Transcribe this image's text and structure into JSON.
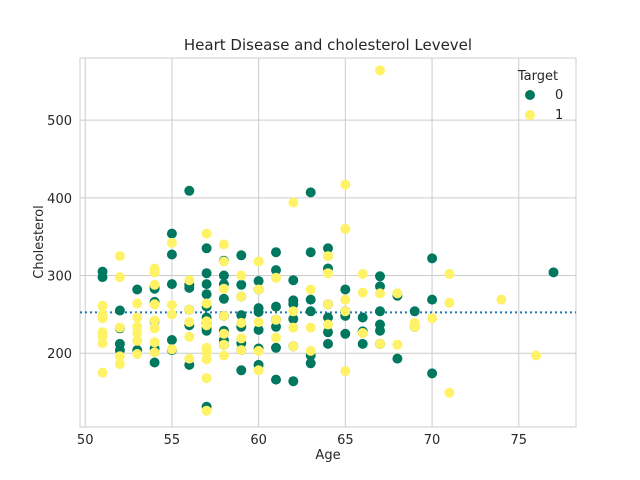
{
  "chart_data": {
    "type": "scatter",
    "title": "Heart Disease and cholesterol Levevel",
    "xlabel": "Age",
    "ylabel": "Cholesterol",
    "xlim": [
      49.7,
      78.3
    ],
    "ylim": [
      105,
      580
    ],
    "xticks": [
      50,
      55,
      60,
      65,
      70,
      75
    ],
    "yticks": [
      200,
      300,
      400,
      500
    ],
    "grid": true,
    "legend": {
      "title": "Target",
      "placement": "top-right"
    },
    "reference_line": {
      "y": 252.5,
      "style": "dotted",
      "color": "#1f77b4"
    },
    "series": [
      {
        "name": "0",
        "color": "#00785f",
        "points": [
          [
            51,
            305
          ],
          [
            51,
            298
          ],
          [
            52,
            255
          ],
          [
            52,
            232
          ],
          [
            52,
            212
          ],
          [
            52,
            204
          ],
          [
            53,
            282
          ],
          [
            53,
            204
          ],
          [
            54,
            286
          ],
          [
            54,
            283
          ],
          [
            54,
            266
          ],
          [
            54,
            241
          ],
          [
            54,
            206
          ],
          [
            54,
            188
          ],
          [
            55,
            354
          ],
          [
            55,
            327
          ],
          [
            55,
            289
          ],
          [
            55,
            217
          ],
          [
            55,
            204
          ],
          [
            56,
            409
          ],
          [
            56,
            288
          ],
          [
            56,
            284
          ],
          [
            56,
            256
          ],
          [
            56,
            236
          ],
          [
            56,
            185
          ],
          [
            57,
            335
          ],
          [
            57,
            303
          ],
          [
            57,
            289
          ],
          [
            57,
            276
          ],
          [
            57,
            260
          ],
          [
            57,
            246
          ],
          [
            57,
            239
          ],
          [
            57,
            232
          ],
          [
            57,
            229
          ],
          [
            57,
            131
          ],
          [
            58,
            319
          ],
          [
            58,
            300
          ],
          [
            58,
            289
          ],
          [
            58,
            270
          ],
          [
            58,
            248
          ],
          [
            58,
            229
          ],
          [
            58,
            217
          ],
          [
            58,
            211
          ],
          [
            59,
            326
          ],
          [
            59,
            288
          ],
          [
            59,
            273
          ],
          [
            59,
            249
          ],
          [
            59,
            234
          ],
          [
            59,
            213
          ],
          [
            59,
            204
          ],
          [
            59,
            178
          ],
          [
            60,
            293
          ],
          [
            60,
            282
          ],
          [
            60,
            258
          ],
          [
            60,
            253
          ],
          [
            60,
            230
          ],
          [
            60,
            206
          ],
          [
            60,
            185
          ],
          [
            61,
            330
          ],
          [
            61,
            307
          ],
          [
            61,
            260
          ],
          [
            61,
            243
          ],
          [
            61,
            234
          ],
          [
            61,
            207
          ],
          [
            61,
            166
          ],
          [
            62,
            294
          ],
          [
            62,
            268
          ],
          [
            62,
            263
          ],
          [
            62,
            244
          ],
          [
            62,
            209
          ],
          [
            62,
            164
          ],
          [
            63,
            407
          ],
          [
            63,
            330
          ],
          [
            63,
            269
          ],
          [
            63,
            254
          ],
          [
            63,
            197
          ],
          [
            63,
            187
          ],
          [
            64,
            335
          ],
          [
            64,
            309
          ],
          [
            64,
            263
          ],
          [
            64,
            246
          ],
          [
            64,
            227
          ],
          [
            64,
            212
          ],
          [
            65,
            282
          ],
          [
            65,
            254
          ],
          [
            65,
            248
          ],
          [
            65,
            225
          ],
          [
            66,
            246
          ],
          [
            66,
            228
          ],
          [
            66,
            212
          ],
          [
            67,
            299
          ],
          [
            67,
            286
          ],
          [
            67,
            254
          ],
          [
            67,
            237
          ],
          [
            67,
            229
          ],
          [
            67,
            212
          ],
          [
            68,
            274
          ],
          [
            68,
            193
          ],
          [
            69,
            254
          ],
          [
            69,
            234
          ],
          [
            70,
            322
          ],
          [
            70,
            269
          ],
          [
            70,
            174
          ],
          [
            77,
            304
          ]
        ]
      },
      {
        "name": "1",
        "color": "#fff266",
        "points": [
          [
            51,
            261
          ],
          [
            51,
            250
          ],
          [
            51,
            245
          ],
          [
            51,
            227
          ],
          [
            51,
            222
          ],
          [
            51,
            213
          ],
          [
            51,
            175
          ],
          [
            52,
            325
          ],
          [
            52,
            298
          ],
          [
            52,
            233
          ],
          [
            52,
            196
          ],
          [
            52,
            186
          ],
          [
            53,
            264
          ],
          [
            53,
            246
          ],
          [
            53,
            234
          ],
          [
            53,
            226
          ],
          [
            53,
            216
          ],
          [
            53,
            199
          ],
          [
            54,
            309
          ],
          [
            54,
            304
          ],
          [
            54,
            288
          ],
          [
            54,
            263
          ],
          [
            54,
            242
          ],
          [
            54,
            232
          ],
          [
            54,
            214
          ],
          [
            54,
            201
          ],
          [
            55,
            342
          ],
          [
            55,
            262
          ],
          [
            55,
            250
          ],
          [
            55,
            205
          ],
          [
            56,
            294
          ],
          [
            56,
            256
          ],
          [
            56,
            240
          ],
          [
            56,
            221
          ],
          [
            56,
            193
          ],
          [
            57,
            354
          ],
          [
            57,
            264
          ],
          [
            57,
            241
          ],
          [
            57,
            236
          ],
          [
            57,
            207
          ],
          [
            57,
            201
          ],
          [
            57,
            192
          ],
          [
            57,
            168
          ],
          [
            57,
            126
          ],
          [
            58,
            340
          ],
          [
            58,
            318
          ],
          [
            58,
            283
          ],
          [
            58,
            248
          ],
          [
            58,
            225
          ],
          [
            58,
            211
          ],
          [
            58,
            197
          ],
          [
            59,
            300
          ],
          [
            59,
            273
          ],
          [
            59,
            239
          ],
          [
            59,
            219
          ],
          [
            59,
            204
          ],
          [
            60,
            318
          ],
          [
            60,
            282
          ],
          [
            60,
            240
          ],
          [
            60,
            203
          ],
          [
            60,
            178
          ],
          [
            61,
            297
          ],
          [
            61,
            243
          ],
          [
            61,
            220
          ],
          [
            62,
            394
          ],
          [
            62,
            254
          ],
          [
            62,
            233
          ],
          [
            62,
            209
          ],
          [
            63,
            282
          ],
          [
            63,
            233
          ],
          [
            63,
            203
          ],
          [
            64,
            325
          ],
          [
            64,
            303
          ],
          [
            64,
            263
          ],
          [
            64,
            237
          ],
          [
            65,
            417
          ],
          [
            65,
            360
          ],
          [
            65,
            269
          ],
          [
            65,
            254
          ],
          [
            65,
            177
          ],
          [
            66,
            302
          ],
          [
            66,
            278
          ],
          [
            66,
            226
          ],
          [
            67,
            564
          ],
          [
            67,
            277
          ],
          [
            67,
            212
          ],
          [
            68,
            277
          ],
          [
            68,
            211
          ],
          [
            69,
            239
          ],
          [
            69,
            234
          ],
          [
            70,
            245
          ],
          [
            71,
            302
          ],
          [
            71,
            265
          ],
          [
            71,
            149
          ],
          [
            74,
            269
          ],
          [
            76,
            197
          ]
        ]
      }
    ]
  }
}
